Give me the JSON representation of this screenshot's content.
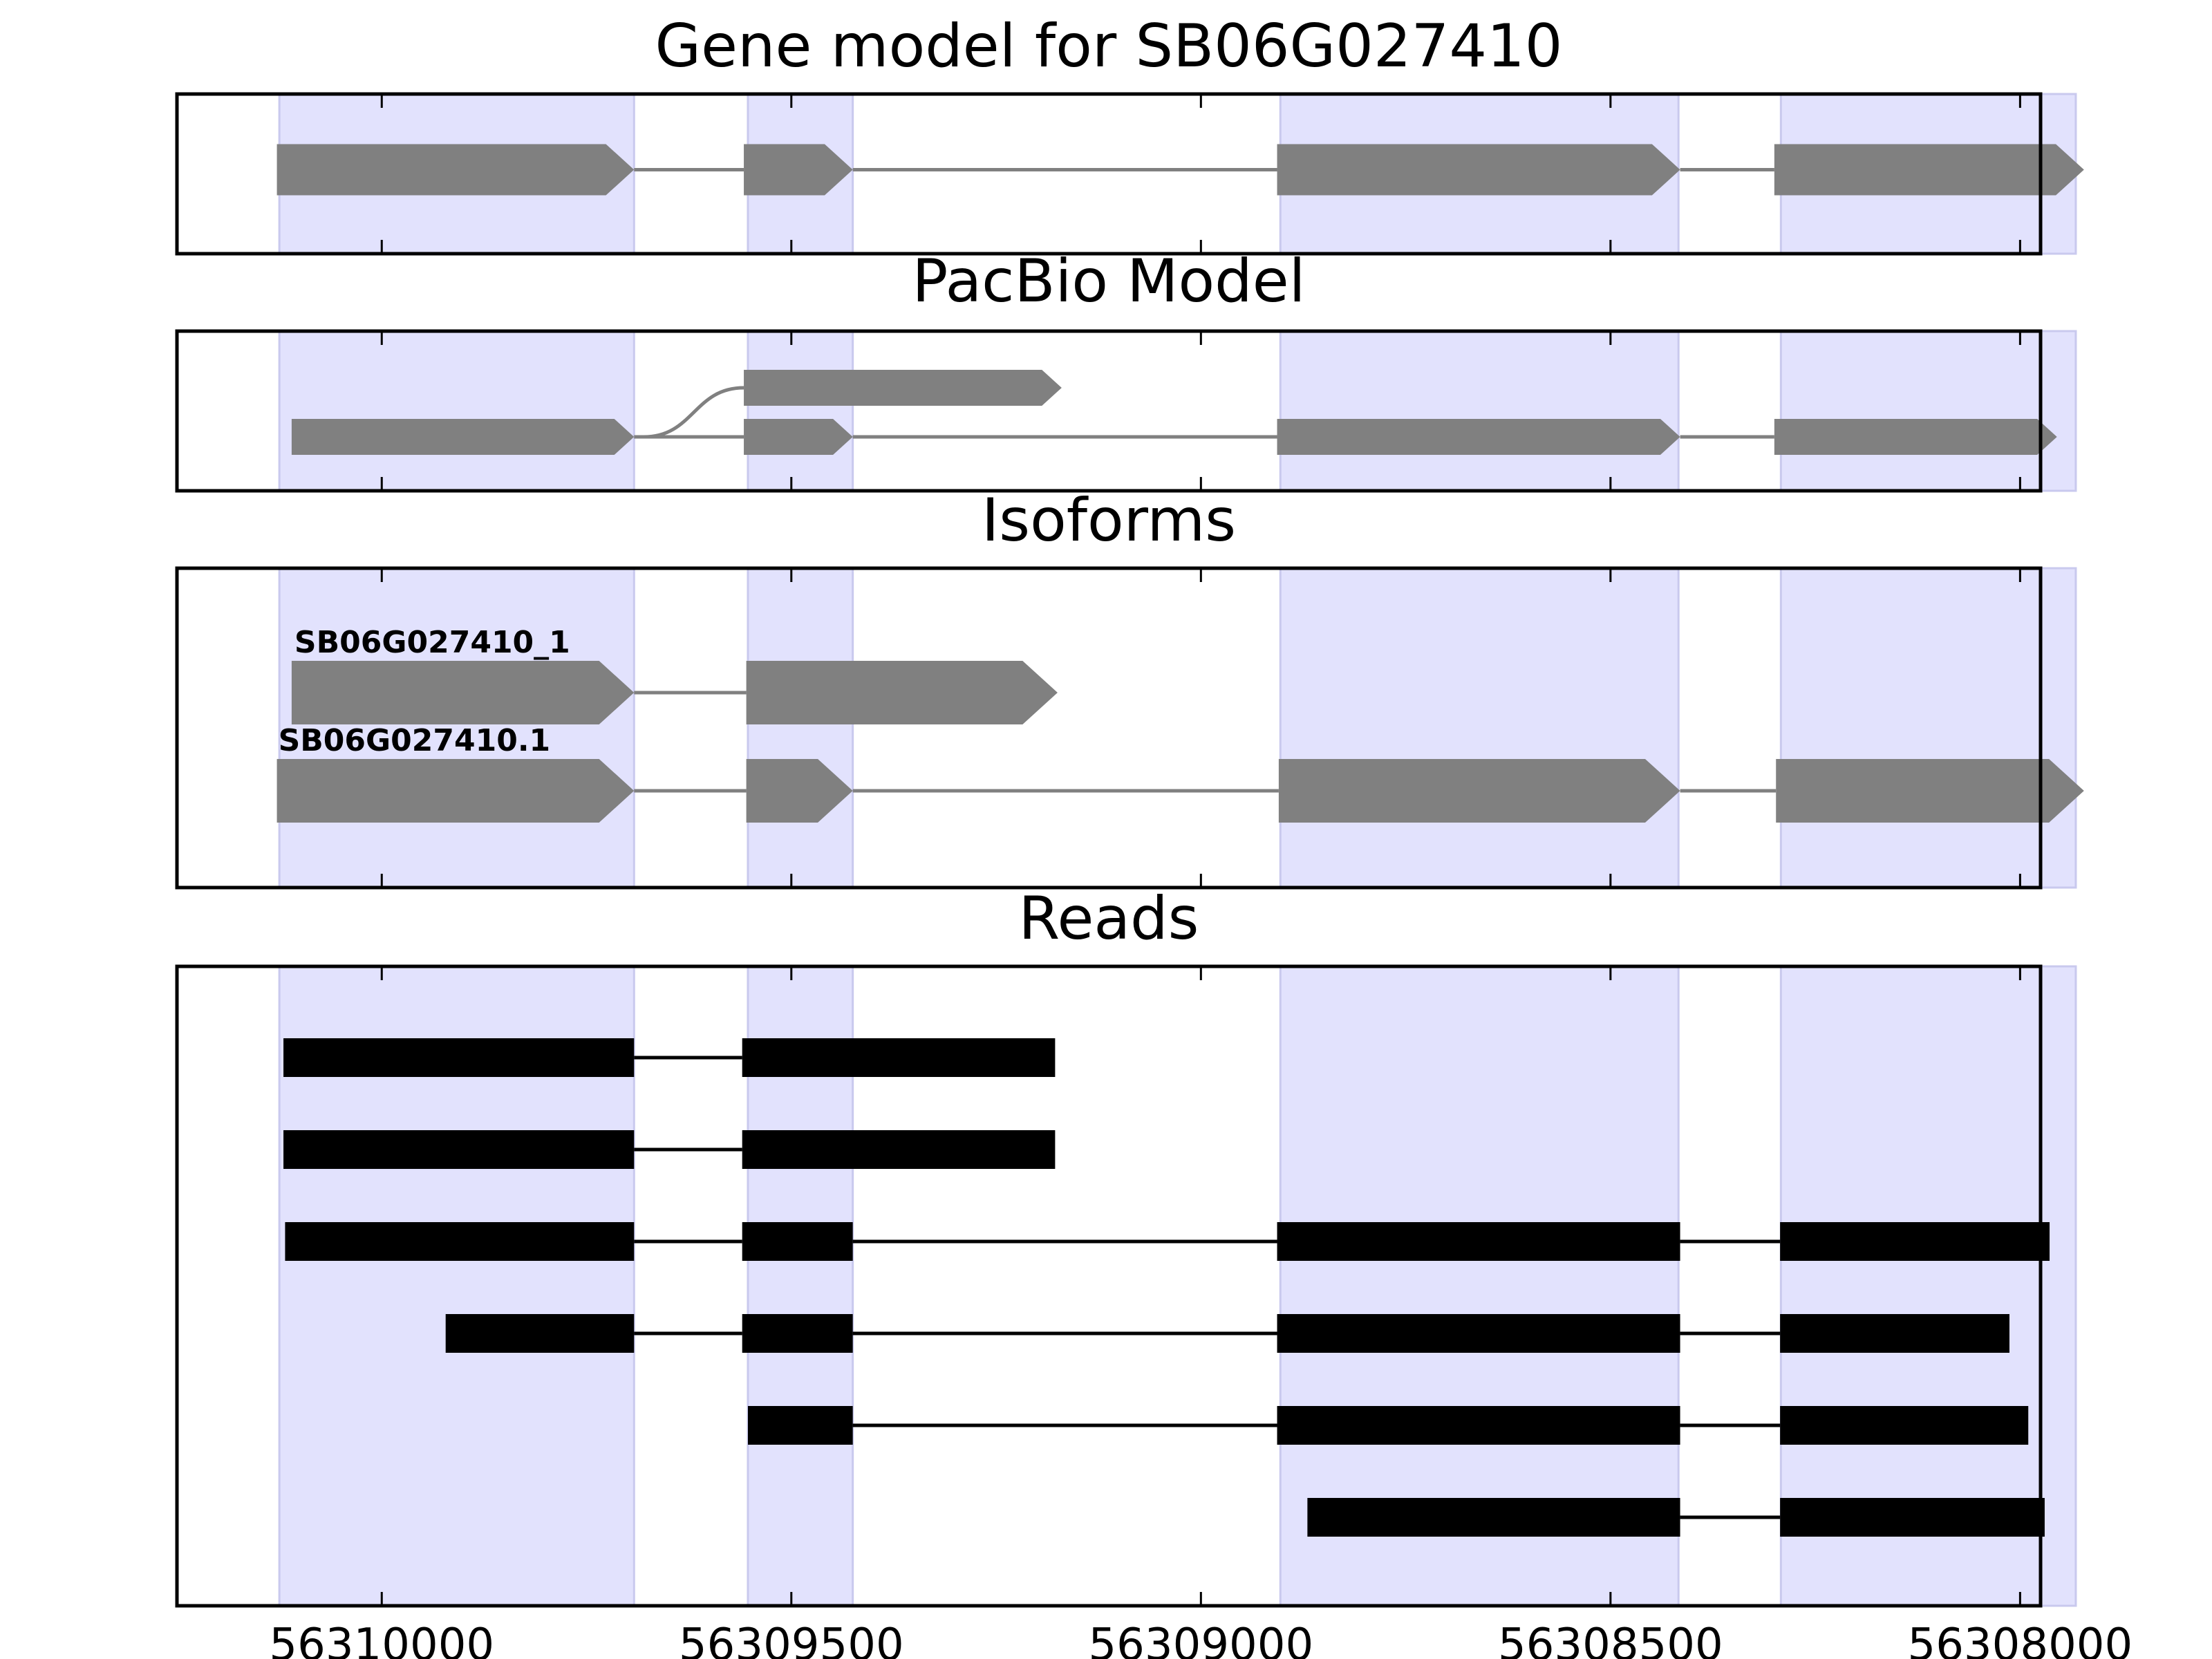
{
  "figure": {
    "panels": [
      {
        "id": "gene-model",
        "title": "Gene model for SB06G027410",
        "style": "arrow",
        "features": [
          {
            "exons": [
              [
                56310128,
                56309692
              ],
              [
                56309558,
                56309425
              ],
              [
                56308907,
                56308415
              ],
              [
                56308300,
                56307922
              ]
            ]
          }
        ]
      },
      {
        "id": "pacbio-model",
        "title": "PacBio Model",
        "style": "arrow-branch",
        "features": [
          {
            "exons": [
              [
                56310110,
                56309692
              ],
              [
                56309558,
                56309425
              ],
              [
                56308907,
                56308415
              ],
              [
                56308300,
                56307955
              ]
            ]
          },
          {
            "exons": [
              [
                56309558,
                56309170
              ]
            ],
            "branch_from_gene": 56309692
          }
        ]
      },
      {
        "id": "isoforms",
        "title": "Isoforms",
        "style": "arrow",
        "features": [
          {
            "label": "SB06G027410_1",
            "exons": [
              [
                56310110,
                56309692
              ],
              [
                56309555,
                56309175
              ]
            ]
          },
          {
            "label": "SB06G027410.1",
            "exons": [
              [
                56310128,
                56309692
              ],
              [
                56309555,
                56309425
              ],
              [
                56308905,
                56308415
              ],
              [
                56308298,
                56307922
              ]
            ]
          }
        ]
      },
      {
        "id": "reads",
        "title": "Reads",
        "style": "block",
        "features": [
          {
            "exons": [
              [
                56310120,
                56309692
              ],
              [
                56309560,
                56309178
              ]
            ]
          },
          {
            "exons": [
              [
                56310120,
                56309692
              ],
              [
                56309560,
                56309178
              ]
            ]
          },
          {
            "exons": [
              [
                56310118,
                56309692
              ],
              [
                56309560,
                56309425
              ],
              [
                56308907,
                56308415
              ],
              [
                56308293,
                56307964
              ]
            ]
          },
          {
            "exons": [
              [
                56309922,
                56309692
              ],
              [
                56309560,
                56309425
              ],
              [
                56308907,
                56308415
              ],
              [
                56308293,
                56308013
              ]
            ]
          },
          {
            "exons": [
              [
                56309553,
                56309425
              ],
              [
                56308907,
                56308415
              ],
              [
                56308293,
                56307990
              ]
            ]
          },
          {
            "exons": [
              [
                56308870,
                56308415
              ],
              [
                56308293,
                56307970
              ]
            ]
          }
        ]
      }
    ],
    "shaded_regions": [
      [
        56310125,
        56309692
      ],
      [
        56309553,
        56309425
      ],
      [
        56308903,
        56308417
      ],
      [
        56308292,
        56307932
      ]
    ],
    "x_axis": {
      "range": [
        56310250,
        56307975
      ],
      "reversed": true,
      "ticks": [
        56310000,
        56309500,
        56309000,
        56308500,
        56308000
      ],
      "tick_labels": [
        "56310000",
        "56309500",
        "56309000",
        "56308500",
        "56308000"
      ]
    },
    "colors": {
      "shade": "#e2e2fd",
      "shade_edge": "#c9c9ee",
      "feature": "#808080",
      "read": "#000000",
      "frame": "#000000",
      "text": "#000000"
    }
  }
}
